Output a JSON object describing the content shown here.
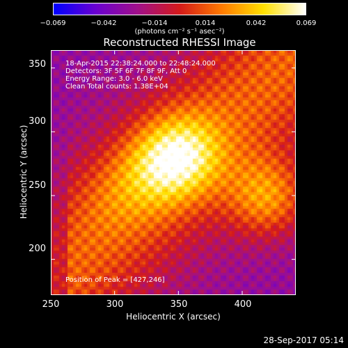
{
  "chart_data": {
    "type": "heatmap",
    "title": "Reconstructed RHESSI Image",
    "xlabel": "Heliocentric X (arcsec)",
    "ylabel": "Heliocentric Y (arcsec)",
    "xlim": [
      250,
      442
    ],
    "ylim": [
      172,
      364
    ],
    "xticks": [
      "250",
      "300",
      "350",
      "400"
    ],
    "xtick_values": [
      250,
      300,
      350,
      400
    ],
    "yticks": [
      "200",
      "250",
      "300",
      "350"
    ],
    "ytick_values": [
      200,
      250,
      300,
      350
    ],
    "colorbar": {
      "ticks": [
        "−0.069",
        "−0.042",
        "−0.014",
        "0.014",
        "0.042",
        "0.069"
      ],
      "tick_values": [
        -0.069,
        -0.042,
        -0.014,
        0.014,
        0.042,
        0.069
      ],
      "range": [
        -0.069,
        0.069
      ],
      "unit_label": "(photons cm⁻² s⁻¹ asec⁻²)",
      "colors": [
        "#0000ff",
        "#6a00d0",
        "#a0108a",
        "#d41a1a",
        "#ff7a00",
        "#ffe000",
        "#ffffff"
      ]
    },
    "annotations": [
      "18-Apr-2015 22:38:24.000 to 22:48:24.000",
      "Detectors: 3F 5F 6F 7F 8F 9F, Att 0",
      "Energy Range: 3.0 - 6.0 keV",
      "Clean      Total counts: 1.38E+04"
    ],
    "peak_label": "Position of Peak = [427,246]",
    "peak": [
      427,
      246
    ],
    "sources": [
      {
        "x": 352,
        "y": 282,
        "amplitude": 0.069
      },
      {
        "x": 420,
        "y": 248,
        "amplitude": 0.068
      },
      {
        "x": 330,
        "y": 270,
        "amplitude": 0.042
      },
      {
        "x": 300,
        "y": 250,
        "amplitude": 0.03
      }
    ]
  },
  "footer": "28-Sep-2017 05:14"
}
